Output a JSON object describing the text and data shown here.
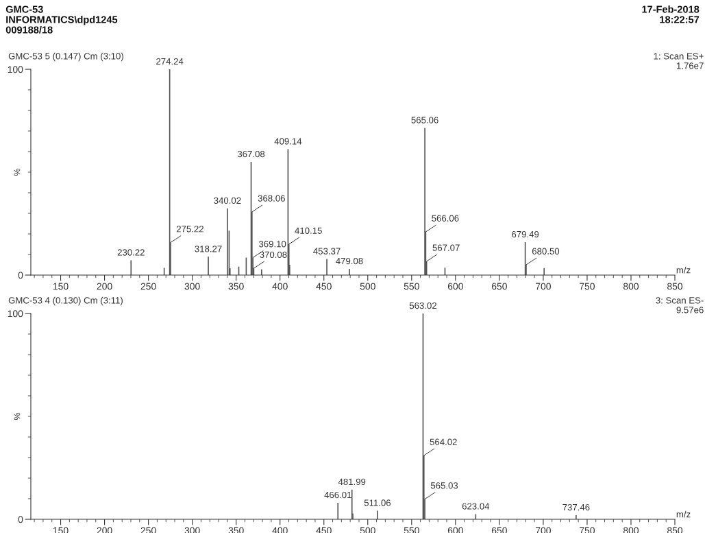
{
  "chart_data": [
    {
      "type": "bar",
      "title": "GMC-53 5 (0.147) Cm (3:10)",
      "xlabel": "m/z",
      "ylabel": "%",
      "color": "#555555",
      "annotations": [
        "GMC-53",
        "INFORMATICS\\dpd1245",
        "009188/18",
        "17-Feb-2018",
        "18:22:57",
        "1: Scan ES+",
        "1.76e7",
        {
          "text": "230.22",
          "x": 230.22,
          "y": 7.2
        },
        {
          "text": "274.24",
          "x": 274.24,
          "y": 100
        },
        {
          "text": "275.22",
          "x": 275.22,
          "y": 15.8
        },
        {
          "text": "318.27",
          "x": 318.27,
          "y": 8.9
        },
        {
          "text": "340.02",
          "x": 340.02,
          "y": 32.4
        },
        {
          "text": "367.08",
          "x": 367.08,
          "y": 55
        },
        {
          "text": "368.06",
          "x": 368.06,
          "y": 30.7
        },
        {
          "text": "369.10",
          "x": 369.1,
          "y": 8.5
        },
        {
          "text": "370.08",
          "x": 370.08,
          "y": 3.3
        },
        {
          "text": "409.14",
          "x": 409.14,
          "y": 61.2
        },
        {
          "text": "410.15",
          "x": 410.15,
          "y": 15
        },
        {
          "text": "453.37",
          "x": 453.37,
          "y": 7.8
        },
        {
          "text": "479.08",
          "x": 479.08,
          "y": 3
        },
        {
          "text": "565.06",
          "x": 565.06,
          "y": 71.5
        },
        {
          "text": "566.06",
          "x": 566.06,
          "y": 21
        },
        {
          "text": "567.07",
          "x": 567.07,
          "y": 6.7
        },
        {
          "text": "679.49",
          "x": 679.49,
          "y": 16
        },
        {
          "text": "680.50",
          "x": 680.5,
          "y": 5
        }
      ],
      "x": [
        230.22,
        268,
        274.24,
        275.22,
        318.27,
        340.02,
        342,
        343,
        353,
        361.5,
        367.08,
        368.06,
        369.1,
        370.08,
        379,
        409.14,
        410.15,
        411,
        453.37,
        479.08,
        565.06,
        566.06,
        567.07,
        588,
        679.49,
        680.5,
        701
      ],
      "values": [
        7.2,
        3.5,
        100,
        15.8,
        8.9,
        32.4,
        21.6,
        3.3,
        4.1,
        8.5,
        55,
        30.7,
        8.5,
        3.3,
        2.8,
        61.2,
        15,
        5,
        7.8,
        3,
        71.5,
        21,
        6.7,
        3.6,
        16,
        5,
        3.4
      ],
      "xlim": [
        116,
        850
      ],
      "ylim": [
        0,
        100
      ],
      "xticks": [
        {
          "value": 120,
          "label": null
        },
        {
          "value": 130,
          "label": null
        },
        {
          "value": 140,
          "label": null
        },
        150,
        {
          "value": 160,
          "label": null
        },
        {
          "value": 170,
          "label": null
        },
        {
          "value": 180,
          "label": null
        },
        {
          "value": 190,
          "label": null
        },
        200,
        {
          "value": 210,
          "label": null
        },
        {
          "value": 220,
          "label": null
        },
        {
          "value": 230,
          "label": null
        },
        {
          "value": 240,
          "label": null
        },
        250,
        {
          "value": 260,
          "label": null
        },
        {
          "value": 270,
          "label": null
        },
        {
          "value": 280,
          "label": null
        },
        {
          "value": 290,
          "label": null
        },
        300,
        {
          "value": 310,
          "label": null
        },
        {
          "value": 320,
          "label": null
        },
        {
          "value": 330,
          "label": null
        },
        {
          "value": 340,
          "label": null
        },
        350,
        {
          "value": 360,
          "label": null
        },
        {
          "value": 370,
          "label": null
        },
        {
          "value": 380,
          "label": null
        },
        {
          "value": 390,
          "label": null
        },
        400,
        {
          "value": 410,
          "label": null
        },
        {
          "value": 420,
          "label": null
        },
        {
          "value": 430,
          "label": null
        },
        {
          "value": 440,
          "label": null
        },
        450,
        {
          "value": 460,
          "label": null
        },
        {
          "value": 470,
          "label": null
        },
        {
          "value": 480,
          "label": null
        },
        {
          "value": 490,
          "label": null
        },
        500,
        {
          "value": 510,
          "label": null
        },
        {
          "value": 520,
          "label": null
        },
        {
          "value": 530,
          "label": null
        },
        {
          "value": 540,
          "label": null
        },
        550,
        {
          "value": 560,
          "label": null
        },
        {
          "value": 570,
          "label": null
        },
        {
          "value": 580,
          "label": null
        },
        {
          "value": 590,
          "label": null
        },
        600,
        {
          "value": 610,
          "label": null
        },
        {
          "value": 620,
          "label": null
        },
        {
          "value": 630,
          "label": null
        },
        {
          "value": 640,
          "label": null
        },
        650,
        {
          "value": 660,
          "label": null
        },
        {
          "value": 670,
          "label": null
        },
        {
          "value": 680,
          "label": null
        },
        {
          "value": 690,
          "label": null
        },
        700,
        {
          "value": 710,
          "label": null
        },
        {
          "value": 720,
          "label": null
        },
        {
          "value": 730,
          "label": null
        },
        {
          "value": 740,
          "label": null
        },
        750,
        {
          "value": 760,
          "label": null
        },
        {
          "value": 770,
          "label": null
        },
        {
          "value": 780,
          "label": null
        },
        {
          "value": 790,
          "label": null
        },
        800,
        {
          "value": 810,
          "label": null
        },
        {
          "value": 820,
          "label": null
        },
        {
          "value": 830,
          "label": null
        },
        {
          "value": 840,
          "label": null
        },
        850
      ],
      "yticks": [
        0,
        {
          "value": 10,
          "label": null
        },
        {
          "value": 20,
          "label": null
        },
        {
          "value": 30,
          "label": null
        },
        {
          "value": 40,
          "label": null
        },
        {
          "value": 50,
          "label": null
        },
        {
          "value": 60,
          "label": null
        },
        {
          "value": 70,
          "label": null
        },
        {
          "value": 80,
          "label": null
        },
        {
          "value": 90,
          "label": null
        },
        100
      ],
      "grid": false,
      "legend": false
    },
    {
      "type": "bar",
      "title": "GMC-53 4 (0.130) Cm (3:11)",
      "xlabel": "m/z",
      "ylabel": "%",
      "color": "#555555",
      "annotations": [
        "3: Scan ES-",
        "9.57e6",
        {
          "text": "466.01",
          "x": 466.01,
          "y": 8
        },
        {
          "text": "481.99",
          "x": 481.99,
          "y": 14.4
        },
        {
          "text": "511.06",
          "x": 511.06,
          "y": 4.2
        },
        {
          "text": "563.02",
          "x": 563.02,
          "y": 100
        },
        {
          "text": "564.02",
          "x": 564.02,
          "y": 31
        },
        {
          "text": "565.03",
          "x": 565.03,
          "y": 9.8
        },
        {
          "text": "623.04",
          "x": 623.04,
          "y": 2.5
        },
        {
          "text": "737.46",
          "x": 737.46,
          "y": 2
        }
      ],
      "x": [
        466.01,
        481.99,
        483,
        511.06,
        563.02,
        564.02,
        565.03,
        623.04,
        737.46
      ],
      "values": [
        8,
        14.4,
        2.8,
        4.2,
        100,
        31,
        9.8,
        2.5,
        2
      ],
      "xlim": [
        116,
        850
      ],
      "ylim": [
        0,
        100
      ],
      "xticks": [
        {
          "value": 120,
          "label": null
        },
        {
          "value": 130,
          "label": null
        },
        {
          "value": 140,
          "label": null
        },
        150,
        {
          "value": 160,
          "label": null
        },
        {
          "value": 170,
          "label": null
        },
        {
          "value": 180,
          "label": null
        },
        {
          "value": 190,
          "label": null
        },
        200,
        {
          "value": 210,
          "label": null
        },
        {
          "value": 220,
          "label": null
        },
        {
          "value": 230,
          "label": null
        },
        {
          "value": 240,
          "label": null
        },
        250,
        {
          "value": 260,
          "label": null
        },
        {
          "value": 270,
          "label": null
        },
        {
          "value": 280,
          "label": null
        },
        {
          "value": 290,
          "label": null
        },
        300,
        {
          "value": 310,
          "label": null
        },
        {
          "value": 320,
          "label": null
        },
        {
          "value": 330,
          "label": null
        },
        {
          "value": 340,
          "label": null
        },
        350,
        {
          "value": 360,
          "label": null
        },
        {
          "value": 370,
          "label": null
        },
        {
          "value": 380,
          "label": null
        },
        {
          "value": 390,
          "label": null
        },
        400,
        {
          "value": 410,
          "label": null
        },
        {
          "value": 420,
          "label": null
        },
        {
          "value": 430,
          "label": null
        },
        {
          "value": 440,
          "label": null
        },
        450,
        {
          "value": 460,
          "label": null
        },
        {
          "value": 470,
          "label": null
        },
        {
          "value": 480,
          "label": null
        },
        {
          "value": 490,
          "label": null
        },
        500,
        {
          "value": 510,
          "label": null
        },
        {
          "value": 520,
          "label": null
        },
        {
          "value": 530,
          "label": null
        },
        {
          "value": 540,
          "label": null
        },
        550,
        {
          "value": 560,
          "label": null
        },
        {
          "value": 570,
          "label": null
        },
        {
          "value": 580,
          "label": null
        },
        {
          "value": 590,
          "label": null
        },
        600,
        {
          "value": 610,
          "label": null
        },
        {
          "value": 620,
          "label": null
        },
        {
          "value": 630,
          "label": null
        },
        {
          "value": 640,
          "label": null
        },
        650,
        {
          "value": 660,
          "label": null
        },
        {
          "value": 670,
          "label": null
        },
        {
          "value": 680,
          "label": null
        },
        {
          "value": 690,
          "label": null
        },
        700,
        {
          "value": 710,
          "label": null
        },
        {
          "value": 720,
          "label": null
        },
        {
          "value": 730,
          "label": null
        },
        {
          "value": 740,
          "label": null
        },
        750,
        {
          "value": 760,
          "label": null
        },
        {
          "value": 770,
          "label": null
        },
        {
          "value": 780,
          "label": null
        },
        {
          "value": 790,
          "label": null
        },
        800,
        {
          "value": 810,
          "label": null
        },
        {
          "value": 820,
          "label": null
        },
        {
          "value": 830,
          "label": null
        },
        {
          "value": 840,
          "label": null
        },
        850
      ],
      "yticks": [
        0,
        {
          "value": 10,
          "label": null
        },
        {
          "value": 20,
          "label": null
        },
        {
          "value": 30,
          "label": null
        },
        {
          "value": 40,
          "label": null
        },
        {
          "value": 50,
          "label": null
        },
        {
          "value": 60,
          "label": null
        },
        {
          "value": 70,
          "label": null
        },
        {
          "value": 80,
          "label": null
        },
        {
          "value": 90,
          "label": null
        },
        100
      ],
      "grid": false,
      "legend": false
    }
  ]
}
